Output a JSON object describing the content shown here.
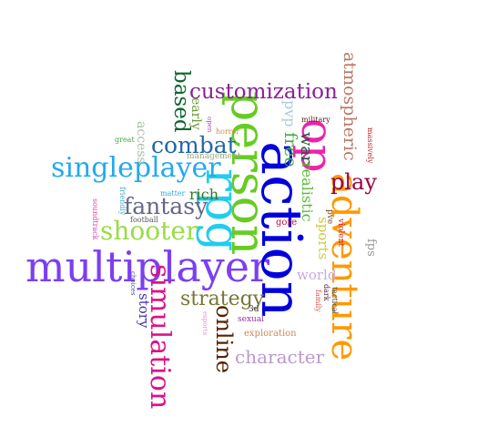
{
  "cloud": {
    "words": [
      {
        "text": "multiplayer",
        "color": "#7b3ff2"
      },
      {
        "text": "action",
        "color": "#0000dd"
      },
      {
        "text": "person",
        "color": "#66cc22"
      },
      {
        "text": "rpg",
        "color": "#22ccee"
      },
      {
        "text": "op",
        "color": "#ee22aa"
      },
      {
        "text": "adventure",
        "color": "#ff9900"
      },
      {
        "text": "singleplayer",
        "color": "#22aaee"
      },
      {
        "text": "shooter",
        "color": "#99dd44"
      },
      {
        "text": "simulation",
        "color": "#dd1188"
      },
      {
        "text": "customization",
        "color": "#882299"
      },
      {
        "text": "combat",
        "color": "#2266aa"
      },
      {
        "text": "fantasy",
        "color": "#666688"
      },
      {
        "text": "strategy",
        "color": "#777733"
      },
      {
        "text": "online",
        "color": "#552200"
      },
      {
        "text": "character",
        "color": "#bb99cc"
      },
      {
        "text": "based",
        "color": "#116633"
      },
      {
        "text": "atmospheric",
        "color": "#bb7766"
      },
      {
        "text": "play",
        "color": "#990044"
      },
      {
        "text": "free",
        "color": "#44aa44"
      },
      {
        "text": "war",
        "color": "#225544"
      },
      {
        "text": "realistic",
        "color": "#55bb33"
      },
      {
        "text": "sports",
        "color": "#cccc44"
      },
      {
        "text": "story",
        "color": "#4433aa"
      },
      {
        "text": "rich",
        "color": "#337722"
      },
      {
        "text": "world",
        "color": "#ccaadd"
      },
      {
        "text": "pvp",
        "color": "#aaccdd"
      },
      {
        "text": "early",
        "color": "#669933"
      },
      {
        "text": "access",
        "color": "#aabbaa"
      },
      {
        "text": "fps",
        "color": "#999999"
      },
      {
        "text": "gore",
        "color": "#bb1144"
      },
      {
        "text": "violent",
        "color": "#cc2222"
      },
      {
        "text": "pve",
        "color": "#774422"
      },
      {
        "text": "exploration",
        "color": "#cc8855"
      },
      {
        "text": "military",
        "color": "#552211"
      },
      {
        "text": "massively",
        "color": "#bb2222"
      },
      {
        "text": "horror",
        "color": "#dd8844"
      },
      {
        "text": "open",
        "color": "#aa55aa"
      },
      {
        "text": "great",
        "color": "#44aa44"
      },
      {
        "text": "management",
        "color": "#99aa77"
      },
      {
        "text": "friendly",
        "color": "#44aacc"
      },
      {
        "text": "matter",
        "color": "#33aadd"
      },
      {
        "text": "football",
        "color": "#555555"
      },
      {
        "text": "soundtrack",
        "color": "#dd44aa"
      },
      {
        "text": "choices",
        "color": "#4455aa"
      },
      {
        "text": "3d",
        "color": "#333333"
      },
      {
        "text": "sexual",
        "color": "#993399"
      },
      {
        "text": "esports",
        "color": "#dd99cc"
      },
      {
        "text": "family",
        "color": "#dd5555"
      },
      {
        "text": "tactical",
        "color": "#444444"
      },
      {
        "text": "dark",
        "color": "#552233"
      }
    ]
  }
}
